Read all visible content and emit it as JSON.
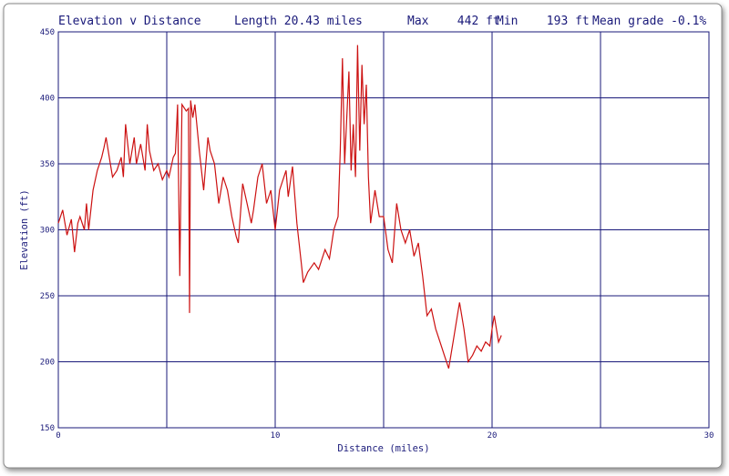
{
  "chart_data": {
    "type": "line",
    "title": "Elevation v Distance",
    "stats": [
      "Length 20.43 miles",
      "Max    442 ft",
      "Min    193 ft",
      "Mean grade -0.1%"
    ],
    "x_label": "Distance (miles)",
    "y_label": "Elevation (ft)",
    "xlim": [
      0,
      30
    ],
    "xticks": [
      0,
      10,
      20,
      30
    ],
    "ylim": [
      150,
      450
    ],
    "yticks": [
      150,
      200,
      250,
      300,
      350,
      400,
      450
    ],
    "grid": true,
    "series": [
      {
        "color": "#cc1111",
        "x": [
          0,
          0.2,
          0.4,
          0.6,
          0.75,
          0.9,
          1.0,
          1.2,
          1.3,
          1.4,
          1.6,
          1.8,
          2.0,
          2.1,
          2.2,
          2.4,
          2.5,
          2.7,
          2.9,
          3.0,
          3.1,
          3.3,
          3.5,
          3.6,
          3.8,
          4.0,
          4.1,
          4.2,
          4.4,
          4.6,
          4.8,
          5.0,
          5.1,
          5.3,
          5.4,
          5.5,
          5.6,
          5.7,
          5.9,
          6.0,
          6.05,
          6.1,
          6.2,
          6.3,
          6.5,
          6.7,
          6.9,
          7.0,
          7.2,
          7.4,
          7.6,
          7.8,
          8.0,
          8.2,
          8.3,
          8.5,
          8.7,
          8.9,
          9.0,
          9.2,
          9.4,
          9.6,
          9.8,
          10.0,
          10.2,
          10.5,
          10.6,
          10.8,
          11.0,
          11.2,
          11.3,
          11.5,
          11.8,
          12.0,
          12.3,
          12.5,
          12.7,
          12.9,
          13.0,
          13.1,
          13.2,
          13.4,
          13.5,
          13.6,
          13.7,
          13.8,
          13.9,
          14.0,
          14.1,
          14.2,
          14.3,
          14.4,
          14.6,
          14.8,
          15.0,
          15.2,
          15.4,
          15.6,
          15.8,
          16.0,
          16.2,
          16.4,
          16.6,
          16.8,
          16.9,
          17.0,
          17.2,
          17.4,
          17.6,
          17.8,
          18.0,
          18.2,
          18.4,
          18.5,
          18.7,
          18.9,
          19.1,
          19.3,
          19.5,
          19.7,
          19.9,
          20.0,
          20.1,
          20.3,
          20.43
        ],
        "values": [
          305,
          315,
          296,
          308,
          283,
          305,
          310,
          300,
          320,
          300,
          330,
          345,
          355,
          362,
          370,
          350,
          340,
          345,
          355,
          340,
          380,
          350,
          370,
          350,
          365,
          345,
          380,
          360,
          345,
          350,
          338,
          345,
          340,
          355,
          358,
          395,
          265,
          395,
          390,
          392,
          237,
          398,
          385,
          395,
          360,
          330,
          370,
          360,
          350,
          320,
          340,
          330,
          310,
          295,
          290,
          335,
          320,
          305,
          315,
          340,
          350,
          320,
          330,
          300,
          330,
          345,
          325,
          348,
          305,
          275,
          260,
          268,
          275,
          270,
          285,
          278,
          300,
          310,
          360,
          430,
          350,
          420,
          345,
          380,
          340,
          440,
          360,
          425,
          380,
          410,
          340,
          305,
          330,
          310,
          310,
          285,
          275,
          320,
          300,
          290,
          300,
          280,
          290,
          265,
          250,
          235,
          240,
          225,
          215,
          205,
          195,
          215,
          235,
          245,
          225,
          200,
          205,
          212,
          208,
          215,
          212,
          225,
          235,
          215,
          220
        ]
      }
    ]
  }
}
